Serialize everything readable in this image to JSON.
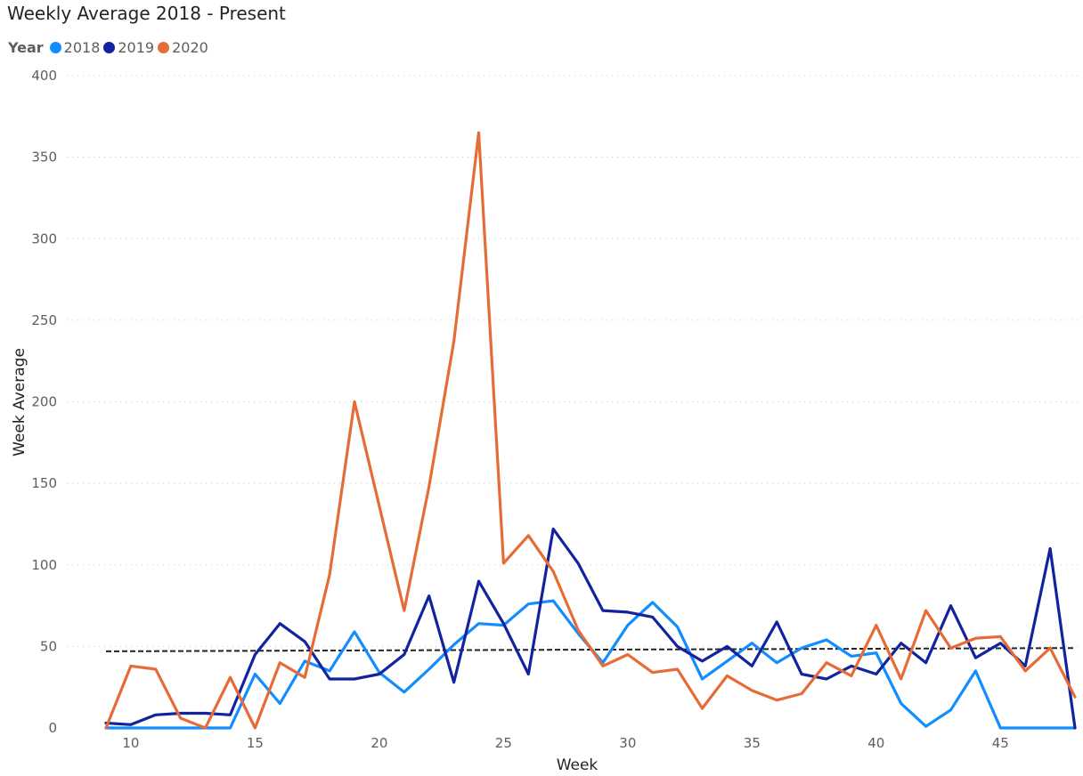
{
  "chart_data": {
    "type": "line",
    "title": "Weekly Average 2018 - Present",
    "xlabel": "Week",
    "ylabel": "Week Average",
    "legend_title": "Year",
    "legend_position": "top-left",
    "grid": "horizontal dotted",
    "xlim": [
      9,
      48
    ],
    "ylim": [
      0,
      400
    ],
    "xticks": [
      10,
      15,
      20,
      25,
      30,
      35,
      40,
      45
    ],
    "yticks": [
      0,
      50,
      100,
      150,
      200,
      250,
      300,
      350,
      400
    ],
    "x": [
      9,
      10,
      11,
      12,
      13,
      14,
      15,
      16,
      17,
      18,
      19,
      20,
      21,
      22,
      23,
      24,
      25,
      26,
      27,
      28,
      29,
      30,
      31,
      32,
      33,
      34,
      35,
      36,
      37,
      38,
      39,
      40,
      41,
      42,
      43,
      44,
      45,
      46,
      47,
      48
    ],
    "series": [
      {
        "name": "2018",
        "color": "#118DFF",
        "values": [
          0,
          0,
          0,
          0,
          0,
          0,
          33,
          15,
          41,
          35,
          59,
          34,
          22,
          36,
          51,
          64,
          63,
          76,
          78,
          58,
          40,
          63,
          77,
          62,
          30,
          41,
          52,
          40,
          49,
          54,
          44,
          46,
          15,
          1,
          11,
          35,
          0,
          0,
          0,
          0
        ]
      },
      {
        "name": "2019",
        "color": "#12239E",
        "values": [
          3,
          2,
          8,
          9,
          9,
          8,
          45,
          64,
          53,
          30,
          30,
          33,
          45,
          81,
          28,
          90,
          64,
          33,
          122,
          101,
          72,
          71,
          68,
          50,
          41,
          50,
          38,
          65,
          33,
          30,
          38,
          33,
          52,
          40,
          75,
          43,
          52,
          38,
          110,
          0
        ]
      },
      {
        "name": "2020",
        "color": "#E66C37",
        "values": [
          0,
          38,
          36,
          6,
          0,
          31,
          0,
          40,
          31,
          94,
          200,
          136,
          72,
          148,
          237,
          365,
          101,
          118,
          96,
          60,
          38,
          45,
          34,
          36,
          12,
          32,
          23,
          17,
          21,
          40,
          32,
          63,
          30,
          72,
          49,
          55,
          56,
          35,
          49,
          19
        ]
      }
    ],
    "trend_line": {
      "style": "black dashed",
      "start": [
        9,
        47
      ],
      "end": [
        48,
        49
      ]
    }
  }
}
